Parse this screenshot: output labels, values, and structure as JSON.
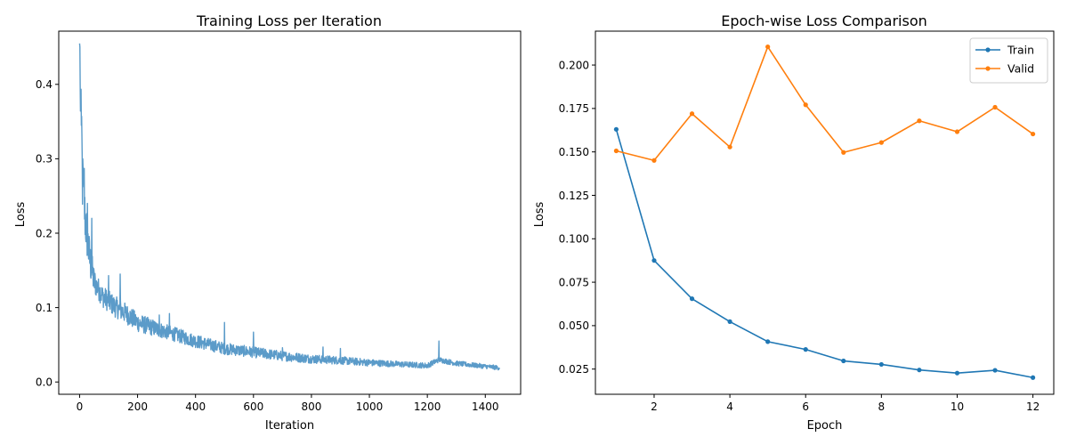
{
  "chart_data": [
    {
      "type": "line",
      "title": "Training Loss per Iteration",
      "xlabel": "Iteration",
      "ylabel": "Loss",
      "xlim": [
        -72,
        1522
      ],
      "ylim": [
        -0.0165,
        0.4715
      ],
      "xticks": [
        0,
        200,
        400,
        600,
        800,
        1000,
        1200,
        1400
      ],
      "yticks": [
        0.0,
        0.1,
        0.2,
        0.3,
        0.4
      ],
      "xtick_labels": [
        "0",
        "200",
        "400",
        "600",
        "800",
        "1000",
        "1200",
        "1400"
      ],
      "ytick_labels": [
        "0.0",
        "0.1",
        "0.2",
        "0.3",
        "0.4"
      ],
      "grid": false,
      "series": [
        {
          "color": "#5b9bc9",
          "n_points": 1450,
          "x_first": 0,
          "x_last": 1449,
          "y_first": 0.455,
          "y_last": 0.019,
          "trend": {
            "x": [
              0,
              5,
              10,
              20,
              35,
              50,
              80,
              120,
              160,
              200,
              260,
              320,
              400,
              500,
              600,
              700,
              800,
              900,
              1000,
              1100,
              1200,
              1240,
              1300,
              1400,
              1449
            ],
            "y": [
              0.455,
              0.34,
              0.27,
              0.215,
              0.165,
              0.135,
              0.115,
              0.102,
              0.092,
              0.08,
              0.072,
              0.065,
              0.055,
              0.045,
              0.04,
              0.035,
              0.031,
              0.029,
              0.026,
              0.024,
              0.022,
              0.03,
              0.025,
              0.021,
              0.019
            ]
          },
          "noise": {
            "x": [
              0,
              20,
              60,
              150,
              300,
              500,
              800,
              1100,
              1449
            ],
            "amplitude": [
              0.06,
              0.035,
              0.015,
              0.014,
              0.01,
              0.008,
              0.006,
              0.004,
              0.003
            ]
          },
          "spikes": [
            {
              "x": 2,
              "y": 0.4
            },
            {
              "x": 7,
              "y": 0.357
            },
            {
              "x": 8,
              "y": 0.33
            },
            {
              "x": 12,
              "y": 0.287
            },
            {
              "x": 16,
              "y": 0.287
            },
            {
              "x": 27,
              "y": 0.24
            },
            {
              "x": 42,
              "y": 0.22
            },
            {
              "x": 100,
              "y": 0.143
            },
            {
              "x": 140,
              "y": 0.145
            },
            {
              "x": 275,
              "y": 0.09
            },
            {
              "x": 310,
              "y": 0.092
            },
            {
              "x": 500,
              "y": 0.08
            },
            {
              "x": 600,
              "y": 0.067
            },
            {
              "x": 700,
              "y": 0.046
            },
            {
              "x": 840,
              "y": 0.047
            },
            {
              "x": 900,
              "y": 0.045
            },
            {
              "x": 1240,
              "y": 0.055
            }
          ]
        }
      ]
    },
    {
      "type": "line",
      "title": "Epoch-wise Loss Comparison",
      "xlabel": "Epoch",
      "ylabel": "Loss",
      "xlim": [
        0.45,
        12.55
      ],
      "ylim": [
        0.0105,
        0.2195
      ],
      "xticks": [
        2,
        4,
        6,
        8,
        10,
        12
      ],
      "yticks": [
        0.025,
        0.05,
        0.075,
        0.1,
        0.125,
        0.15,
        0.175,
        0.2
      ],
      "xtick_labels": [
        "2",
        "4",
        "6",
        "8",
        "10",
        "12"
      ],
      "ytick_labels": [
        "0.025",
        "0.050",
        "0.075",
        "0.100",
        "0.125",
        "0.150",
        "0.175",
        "0.200"
      ],
      "grid": false,
      "legend_position": "upper right",
      "x": [
        1,
        2,
        3,
        4,
        5,
        6,
        7,
        8,
        9,
        10,
        11,
        12
      ],
      "series": [
        {
          "name": "Train",
          "color": "#1f77b4",
          "values": [
            0.163,
            0.0875,
            0.0655,
            0.0523,
            0.0408,
            0.0363,
            0.0297,
            0.0277,
            0.0245,
            0.0227,
            0.0243,
            0.0201
          ]
        },
        {
          "name": "Valid",
          "color": "#ff7f0e",
          "values": [
            0.1506,
            0.1451,
            0.172,
            0.1528,
            0.2105,
            0.1771,
            0.1497,
            0.1554,
            0.1679,
            0.1616,
            0.1757,
            0.1603
          ]
        }
      ]
    }
  ]
}
